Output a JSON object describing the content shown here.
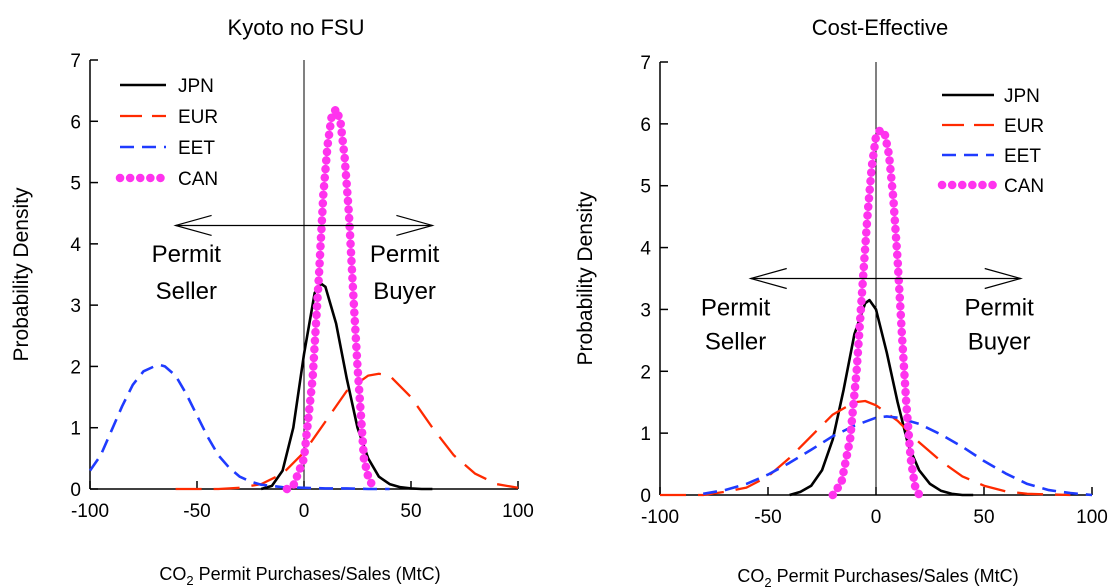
{
  "colors": {
    "JPN": "#000000",
    "EUR": "#ff2a00",
    "EET": "#1f3bff",
    "CAN": "#ff33ee"
  },
  "chart_data": [
    {
      "type": "line",
      "title": "Kyoto no FSU",
      "ylabel": "Probability Density",
      "xlabel_prefix": "CO",
      "xlabel_sub": "2",
      "xlabel_suffix": " Permit Purchases/Sales (MtC)",
      "xlim": [
        -100,
        100
      ],
      "ylim": [
        0,
        7
      ],
      "xticks": [
        -100,
        -50,
        0,
        50,
        100
      ],
      "yticks": [
        0,
        1,
        2,
        3,
        4,
        5,
        6,
        7
      ],
      "legend_position": "top-left",
      "series": [
        {
          "name": "JPN",
          "style": "solid",
          "x": [
            -20,
            -15,
            -10,
            -5,
            0,
            5,
            8,
            10,
            15,
            20,
            25,
            30,
            35,
            40,
            45,
            50,
            55,
            60
          ],
          "y": [
            0.0,
            0.05,
            0.3,
            1.0,
            2.2,
            3.2,
            3.35,
            3.3,
            2.7,
            1.8,
            1.0,
            0.5,
            0.2,
            0.08,
            0.03,
            0.01,
            0.0,
            0.0
          ]
        },
        {
          "name": "EUR",
          "style": "long-dash",
          "x": [
            -60,
            -40,
            -30,
            -20,
            -10,
            0,
            10,
            20,
            30,
            35,
            40,
            50,
            60,
            70,
            80,
            90,
            100
          ],
          "y": [
            0.0,
            0.0,
            0.02,
            0.08,
            0.25,
            0.6,
            1.1,
            1.6,
            1.85,
            1.88,
            1.85,
            1.5,
            1.0,
            0.55,
            0.25,
            0.08,
            0.02
          ]
        },
        {
          "name": "EET",
          "style": "dash",
          "x": [
            -100,
            -95,
            -90,
            -85,
            -80,
            -75,
            -70,
            -67,
            -65,
            -60,
            -55,
            -50,
            -45,
            -40,
            -35,
            -30,
            -25,
            -20,
            -10,
            0,
            10,
            20,
            30,
            40
          ],
          "y": [
            0.3,
            0.55,
            0.95,
            1.35,
            1.7,
            1.92,
            2.0,
            2.02,
            2.0,
            1.85,
            1.55,
            1.2,
            0.85,
            0.55,
            0.35,
            0.2,
            0.12,
            0.07,
            0.03,
            0.02,
            0.01,
            0.01,
            0.0,
            0.0
          ]
        },
        {
          "name": "CAN",
          "style": "dotted",
          "x": [
            -8,
            -5,
            0,
            4,
            7,
            9,
            11,
            13,
            15,
            17,
            19,
            21,
            23,
            25,
            27,
            28,
            30,
            32,
            34
          ],
          "y": [
            0.0,
            0.05,
            0.5,
            1.8,
            3.5,
            4.8,
            5.6,
            6.1,
            6.2,
            6.0,
            5.4,
            4.5,
            3.2,
            2.0,
            1.0,
            0.5,
            0.2,
            0.05,
            0.0
          ]
        }
      ],
      "arrow": {
        "x_from": -60,
        "x_to": 60,
        "y": 4.3
      },
      "annotations": [
        {
          "text": "Permit",
          "x": -55,
          "y": 3.7,
          "anchor": "middle"
        },
        {
          "text": "Seller",
          "x": -55,
          "y": 3.1,
          "anchor": "middle"
        },
        {
          "text": "Permit",
          "x": 47,
          "y": 3.7,
          "anchor": "middle"
        },
        {
          "text": "Buyer",
          "x": 47,
          "y": 3.1,
          "anchor": "middle"
        }
      ]
    },
    {
      "type": "line",
      "title": "Cost-Effective",
      "ylabel": "Probability Density",
      "xlabel_prefix": "CO",
      "xlabel_sub": "2",
      "xlabel_suffix": " Permit Purchases/Sales (MtC)",
      "xlim": [
        -100,
        100
      ],
      "ylim": [
        0,
        7
      ],
      "xticks": [
        -100,
        -50,
        0,
        50,
        100
      ],
      "yticks": [
        0,
        1,
        2,
        3,
        4,
        5,
        6,
        7
      ],
      "legend_position": "top-right",
      "series": [
        {
          "name": "JPN",
          "style": "solid",
          "x": [
            -40,
            -35,
            -30,
            -25,
            -20,
            -15,
            -10,
            -5,
            -3,
            0,
            5,
            10,
            15,
            20,
            25,
            30,
            35,
            40,
            45
          ],
          "y": [
            0.0,
            0.05,
            0.15,
            0.4,
            0.9,
            1.7,
            2.6,
            3.1,
            3.15,
            3.0,
            2.3,
            1.5,
            0.8,
            0.4,
            0.18,
            0.07,
            0.02,
            0.0,
            0.0
          ]
        },
        {
          "name": "EUR",
          "style": "long-dash",
          "x": [
            -100,
            -80,
            -70,
            -60,
            -50,
            -40,
            -30,
            -20,
            -10,
            -5,
            0,
            10,
            20,
            30,
            40,
            50,
            60,
            70,
            80,
            90
          ],
          "y": [
            0.0,
            0.0,
            0.05,
            0.12,
            0.3,
            0.6,
            0.95,
            1.3,
            1.5,
            1.52,
            1.45,
            1.2,
            0.85,
            0.55,
            0.3,
            0.15,
            0.06,
            0.02,
            0.01,
            0.0
          ]
        },
        {
          "name": "EET",
          "style": "dash",
          "x": [
            -80,
            -70,
            -60,
            -50,
            -40,
            -30,
            -20,
            -10,
            0,
            5,
            10,
            20,
            30,
            40,
            50,
            60,
            70,
            80,
            90,
            100
          ],
          "y": [
            0.02,
            0.08,
            0.18,
            0.33,
            0.52,
            0.73,
            0.95,
            1.12,
            1.25,
            1.27,
            1.25,
            1.15,
            0.98,
            0.78,
            0.55,
            0.35,
            0.18,
            0.08,
            0.03,
            0.0
          ]
        },
        {
          "name": "CAN",
          "style": "dotted",
          "x": [
            -20,
            -16,
            -12,
            -9,
            -6,
            -4,
            -2,
            0,
            2,
            4,
            6,
            8,
            10,
            12,
            14,
            16,
            18,
            20
          ],
          "y": [
            0.0,
            0.2,
            0.9,
            2.0,
            3.5,
            4.5,
            5.3,
            5.8,
            5.9,
            5.85,
            5.5,
            4.8,
            3.8,
            2.6,
            1.5,
            0.6,
            0.15,
            0.0
          ]
        }
      ],
      "arrow": {
        "x_from": -58,
        "x_to": 67,
        "y": 3.5
      },
      "annotations": [
        {
          "text": "Permit",
          "x": -65,
          "y": 2.9,
          "anchor": "middle"
        },
        {
          "text": "Seller",
          "x": -65,
          "y": 2.35,
          "anchor": "middle"
        },
        {
          "text": "Permit",
          "x": 57,
          "y": 2.9,
          "anchor": "middle"
        },
        {
          "text": "Buyer",
          "x": 57,
          "y": 2.35,
          "anchor": "middle"
        }
      ]
    }
  ]
}
